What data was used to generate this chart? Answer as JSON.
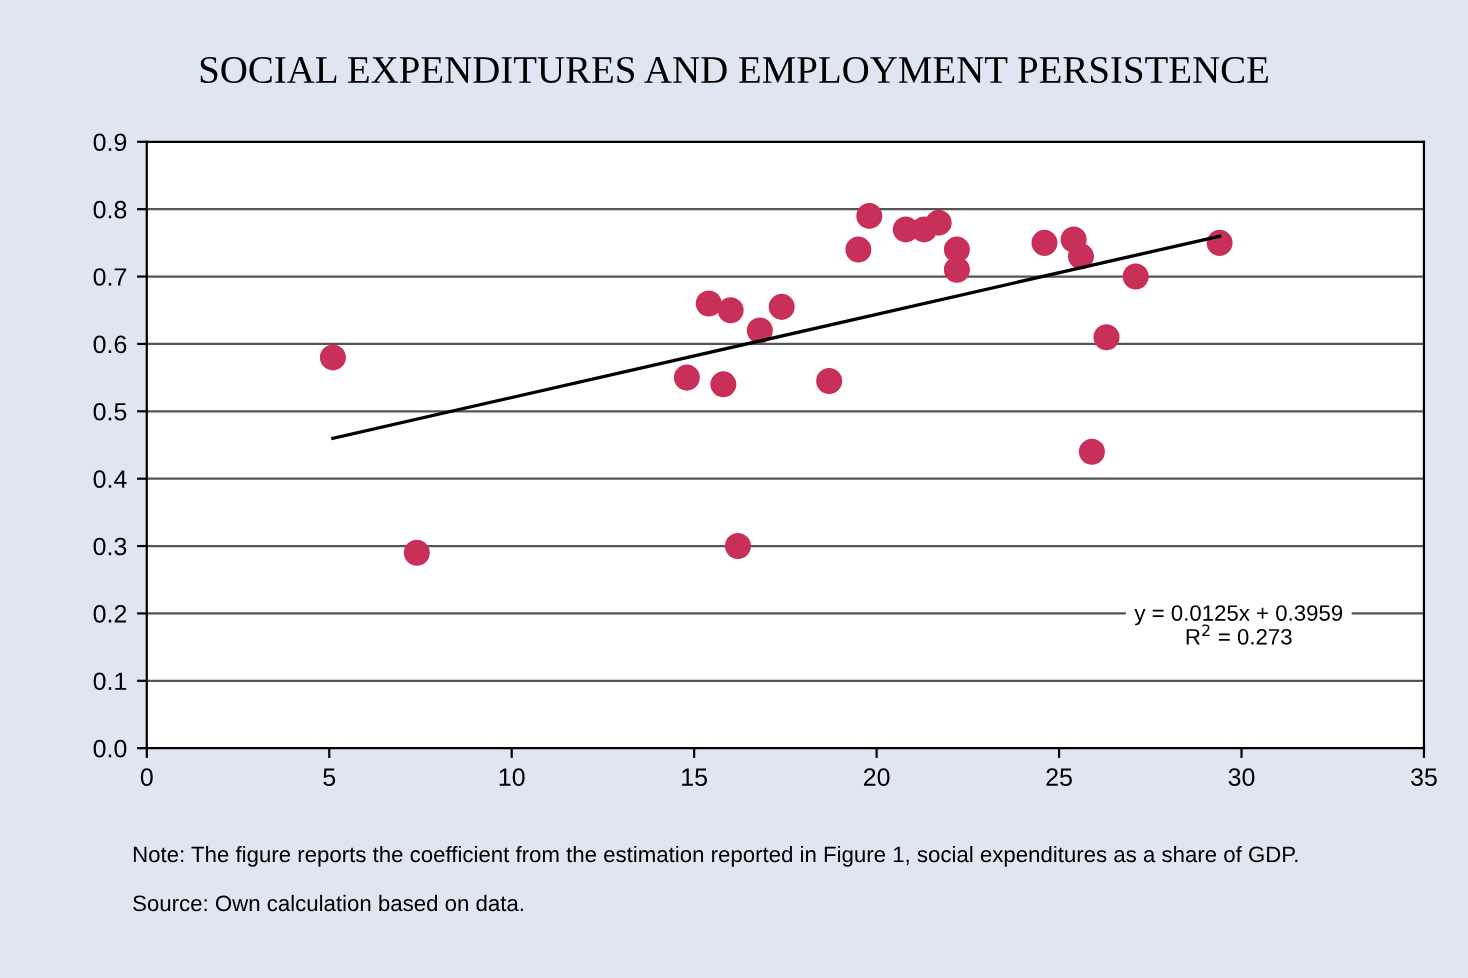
{
  "chart_data": {
    "type": "scatter",
    "title": "SOCIAL EXPENDITURES AND EMPLOYMENT PERSISTENCE",
    "xlim": [
      0,
      35
    ],
    "xticks": [
      0,
      5,
      10,
      15,
      20,
      25,
      30,
      35
    ],
    "ylim": [
      0,
      0.9
    ],
    "yticks": [
      {
        "value": 0,
        "label": "0.0"
      },
      0.1,
      0.2,
      0.3,
      0.4,
      0.5,
      0.6,
      0.7,
      0.8,
      0.9
    ],
    "grid": "y",
    "series": [
      {
        "marker": "circle",
        "color": "#c8305a",
        "x": [
          5.1,
          7.4,
          14.8,
          15.4,
          16.0,
          15.8,
          16.2,
          16.8,
          17.4,
          18.7,
          19.5,
          19.8,
          20.8,
          21.3,
          21.7,
          22.2,
          22.2,
          24.6,
          25.4,
          25.6,
          25.9,
          26.3,
          27.1,
          29.4
        ],
        "values": [
          0.58,
          0.29,
          0.55,
          0.66,
          0.65,
          0.54,
          0.3,
          0.62,
          0.655,
          0.545,
          0.74,
          0.79,
          0.77,
          0.77,
          0.78,
          0.74,
          0.71,
          0.75,
          0.755,
          0.73,
          0.44,
          0.61,
          0.7,
          0.75
        ]
      },
      {
        "type": "line",
        "marker": "none",
        "color": "#000000",
        "x": [
          5.1,
          29.4
        ],
        "values": [
          0.46,
          0.76
        ]
      }
    ],
    "annotations": [
      "y = 0.0125x + 0.3959\nR$^{2}$ = 0.273",
      "Note: The figure reports the coefficient from the estimation reported in Figure 1, social expenditures as a share of GDP.",
      "Source: Own calculation based on data."
    ]
  }
}
